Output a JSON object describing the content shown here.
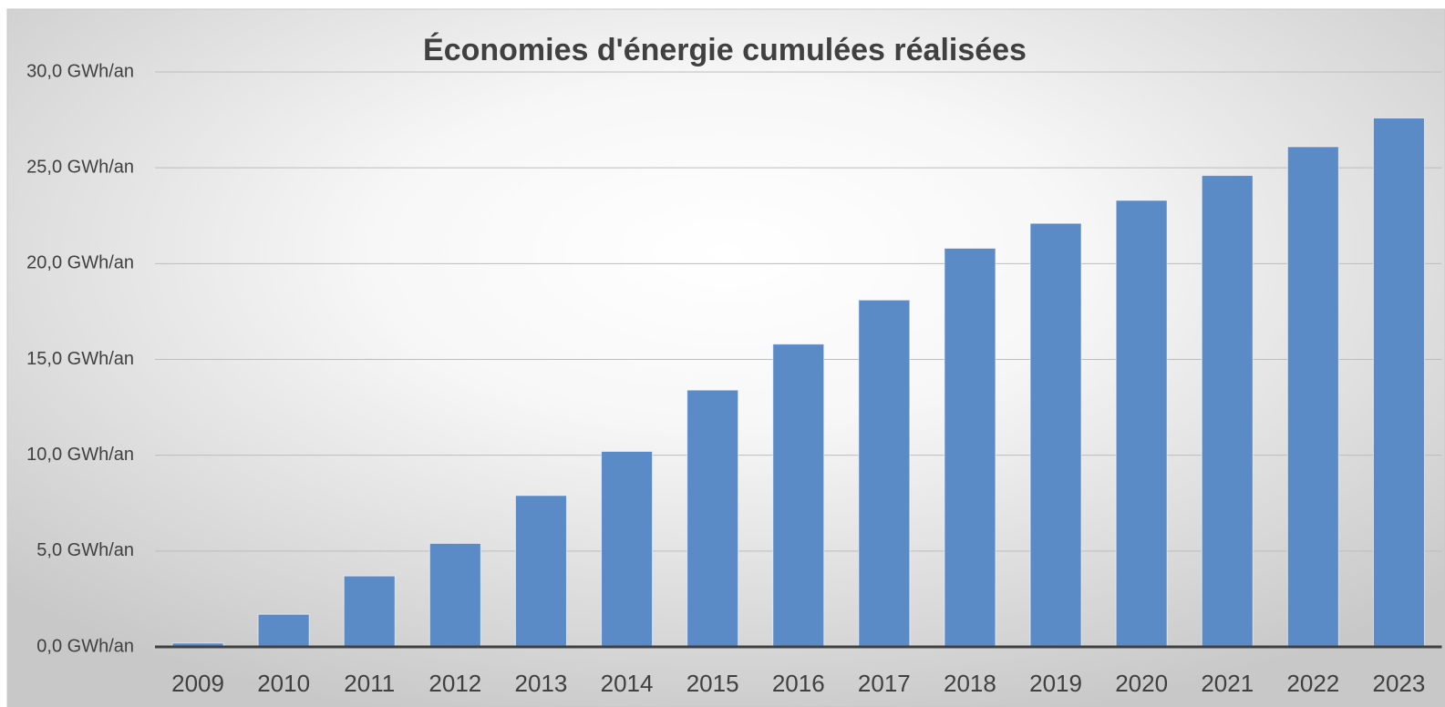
{
  "chart_data": {
    "type": "bar",
    "title": "Économies d'énergie cumulées réalisées",
    "categories": [
      "2009",
      "2010",
      "2011",
      "2012",
      "2013",
      "2014",
      "2015",
      "2016",
      "2017",
      "2018",
      "2019",
      "2020",
      "2021",
      "2022",
      "2023"
    ],
    "values": [
      0.2,
      1.7,
      3.7,
      5.4,
      7.9,
      10.2,
      13.4,
      15.8,
      18.1,
      20.8,
      22.1,
      23.3,
      24.6,
      26.1,
      27.6
    ],
    "color": "#5b8bc6",
    "ylim": [
      0,
      30
    ],
    "yticks": [
      {
        "value": 0,
        "label": "0,0 GWh/an"
      },
      {
        "value": 5,
        "label": "5,0 GWh/an"
      },
      {
        "value": 10,
        "label": "10,0 GWh/an"
      },
      {
        "value": 15,
        "label": "15,0 GWh/an"
      },
      {
        "value": 20,
        "label": "20,0 GWh/an"
      },
      {
        "value": 25,
        "label": "25,0 GWh/an"
      },
      {
        "value": 30,
        "label": "30,0 GWh/an"
      }
    ],
    "grid": true
  }
}
